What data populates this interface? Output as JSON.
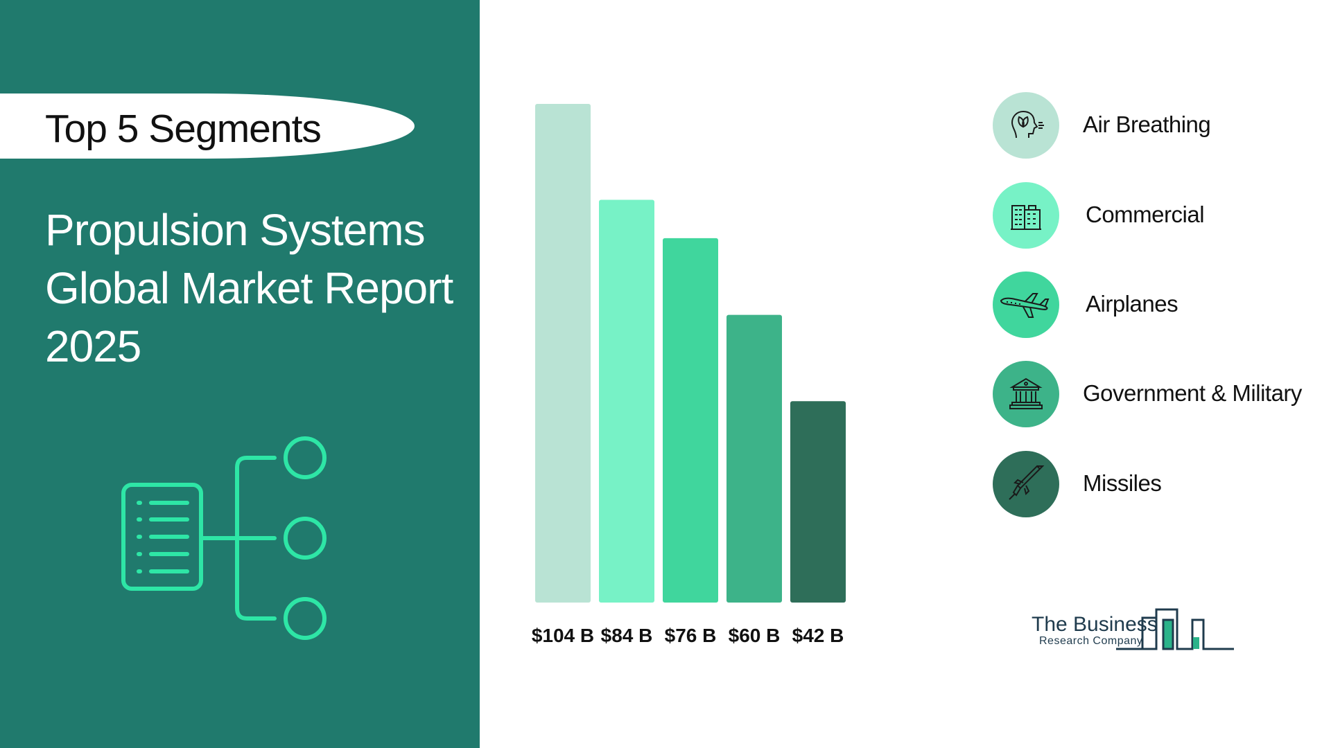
{
  "header": {
    "segment_label": "Top 5 Segments",
    "title_lines": [
      "Propulsion Systems",
      "Global Market Report",
      "2025"
    ]
  },
  "chart_data": {
    "type": "bar",
    "categories": [
      "Air Breathing",
      "Commercial",
      "Airplanes",
      "Government & Military",
      "Missiles"
    ],
    "values": [
      104,
      84,
      76,
      60,
      42
    ],
    "value_labels": [
      "$104 B",
      "$84 B",
      "$76 B",
      "$60 B",
      "$42 B"
    ],
    "colors": [
      "#b9e3d4",
      "#77f2c6",
      "#40d69d",
      "#3db389",
      "#2e6e59"
    ]
  },
  "legend": [
    {
      "label": "Air Breathing",
      "icon": "head-leaf-icon",
      "color": "#b9e3d4"
    },
    {
      "label": "Commercial",
      "icon": "building-icon",
      "color": "#77f2c6"
    },
    {
      "label": "Airplanes",
      "icon": "airplane-icon",
      "color": "#40d69d"
    },
    {
      "label": "Government & Military",
      "icon": "government-building-icon",
      "color": "#3db389"
    },
    {
      "label": "Missiles",
      "icon": "missile-icon",
      "color": "#2e6e59"
    }
  ],
  "logo": {
    "main": "The Business",
    "sub": "Research Company"
  },
  "colors": {
    "panel": "#207a6d",
    "accent": "#2ee6a6"
  }
}
